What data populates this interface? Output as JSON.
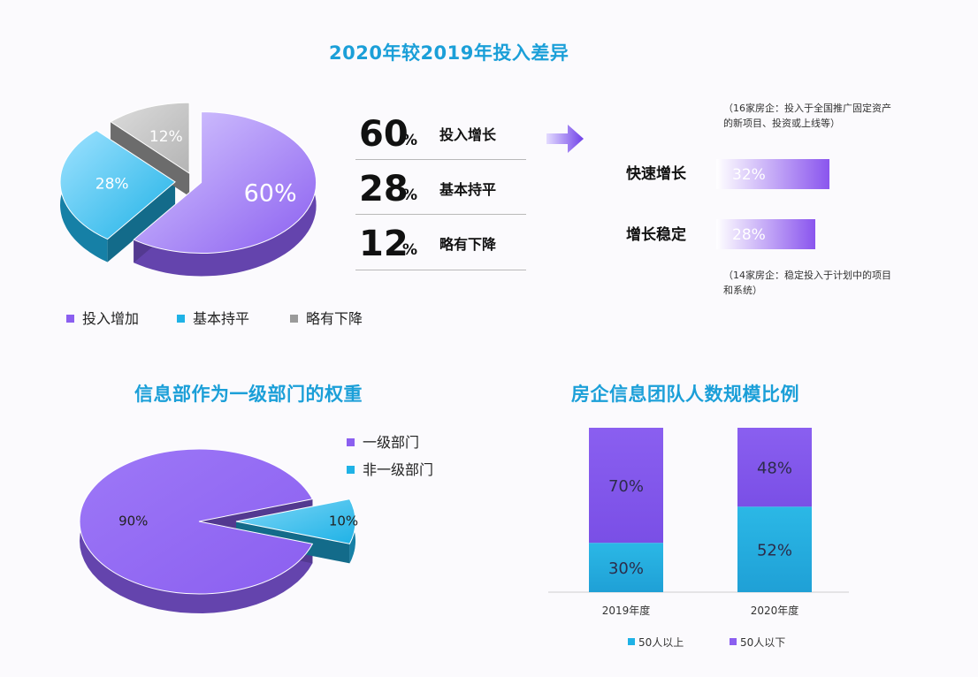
{
  "colors": {
    "purple": "#8b5ff0",
    "cyan": "#1fb2e6",
    "gray": "#b4b4b4",
    "title": "#1b9fd8"
  },
  "sections": {
    "top_title": "2020年较2019年投入差异",
    "bottom_left_title": "信息部作为一级部门的权重",
    "bottom_right_title": "房企信息团队人数规模比例"
  },
  "stats": [
    {
      "value": "60",
      "unit": "%",
      "label": "投入增长"
    },
    {
      "value": "28",
      "unit": "%",
      "label": "基本持平"
    },
    {
      "value": "12",
      "unit": "%",
      "label": "略有下降"
    }
  ],
  "growth_detail": {
    "note_top": "（16家房企：投入于全国推广固定资产的新项目、投资或上线等）",
    "note_bottom": "（14家房企：稳定投入于计划中的项目和系统）",
    "icon": "arrow-right-icon"
  },
  "chart_data": [
    {
      "type": "pie",
      "title": "2020年较2019年投入差异",
      "labels": [
        "投入增加",
        "基本持平",
        "略有下降"
      ],
      "values": [
        60,
        28,
        12
      ],
      "value_labels": [
        "60%",
        "28%",
        "12%"
      ],
      "legend_position": "bottom"
    },
    {
      "type": "bar",
      "orientation": "horizontal",
      "categories": [
        "快速增长",
        "增长稳定"
      ],
      "values": [
        32,
        28
      ],
      "value_labels": [
        "32%",
        "28%"
      ]
    },
    {
      "type": "pie",
      "title": "信息部作为一级部门的权重",
      "labels": [
        "一级部门",
        "非一级部门"
      ],
      "values": [
        90,
        10
      ],
      "value_labels": [
        "90%",
        "10%"
      ],
      "legend_position": "top-right"
    },
    {
      "type": "bar",
      "stacked": true,
      "title": "房企信息团队人数规模比例",
      "categories": [
        "2019年度",
        "2020年度"
      ],
      "series": [
        {
          "name": "50人以上",
          "values": [
            30,
            52
          ],
          "value_labels": [
            "30%",
            "52%"
          ]
        },
        {
          "name": "50人以下",
          "values": [
            70,
            48
          ],
          "value_labels": [
            "70%",
            "48%"
          ]
        }
      ],
      "ylim": [
        0,
        100
      ],
      "legend_position": "bottom"
    }
  ]
}
